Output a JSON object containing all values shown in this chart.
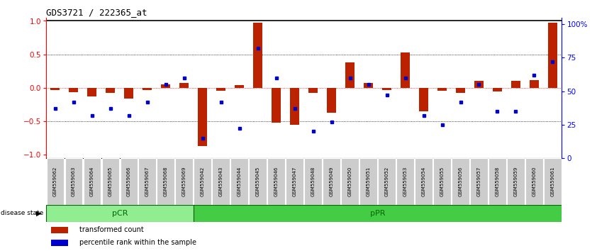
{
  "title": "GDS3721 / 222365_at",
  "samples": [
    "GSM559062",
    "GSM559063",
    "GSM559064",
    "GSM559065",
    "GSM559066",
    "GSM559067",
    "GSM559068",
    "GSM559069",
    "GSM559042",
    "GSM559043",
    "GSM559044",
    "GSM559045",
    "GSM559046",
    "GSM559047",
    "GSM559048",
    "GSM559049",
    "GSM559050",
    "GSM559051",
    "GSM559052",
    "GSM559053",
    "GSM559054",
    "GSM559055",
    "GSM559056",
    "GSM559057",
    "GSM559058",
    "GSM559059",
    "GSM559060",
    "GSM559061"
  ],
  "transformed_count": [
    -0.03,
    -0.06,
    -0.13,
    -0.08,
    -0.16,
    -0.03,
    0.05,
    0.07,
    -0.87,
    -0.04,
    0.04,
    0.97,
    -0.52,
    -0.55,
    -0.07,
    -0.37,
    0.38,
    0.07,
    -0.03,
    0.53,
    -0.35,
    -0.04,
    -0.08,
    0.1,
    -0.05,
    0.1,
    0.12,
    0.97
  ],
  "percentile_rank": [
    37,
    42,
    32,
    37,
    32,
    42,
    55,
    60,
    15,
    42,
    22,
    82,
    60,
    37,
    20,
    27,
    60,
    55,
    47,
    60,
    32,
    25,
    42,
    55,
    35,
    35,
    62,
    72
  ],
  "pCR_count": 8,
  "pPR_count": 20,
  "bar_color": "#bb2200",
  "dot_color": "#0000cc",
  "pCR_color": "#90ee90",
  "pPR_color": "#44cc44",
  "label_bg_color": "#cccccc",
  "yticks_left": [
    -1,
    -0.5,
    0,
    0.5,
    1
  ],
  "yticks_right": [
    0,
    25,
    50,
    75,
    100
  ],
  "ylim": [
    -1.05,
    1.05
  ],
  "right_ylim": [
    0,
    105
  ]
}
